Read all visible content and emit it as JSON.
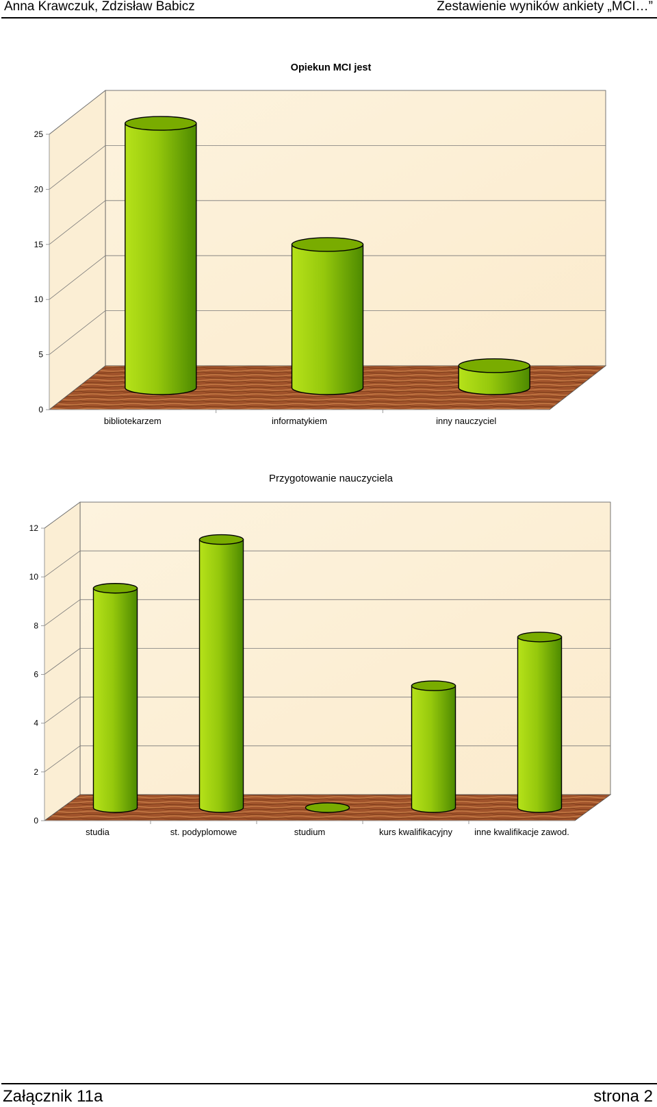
{
  "header": {
    "left": "Anna Krawczuk, Zdzisław Babicz",
    "right": "Zestawienie wyników ankiety „MCI…”"
  },
  "footer": {
    "left": "Załącznik 11a",
    "right": "strona 2"
  },
  "colors": {
    "bar_light": "#b6e21a",
    "bar_dark": "#4d8a00",
    "bar_top": "#79ac00",
    "wall": "#fbebcd",
    "floor": "#a0532b"
  },
  "chart_data": [
    {
      "type": "bar",
      "style": "3d-cylinder",
      "title": "Opiekun MCI jest",
      "categories": [
        "bibliotekarzem",
        "informatykiem",
        "inny nauczyciel"
      ],
      "values": [
        24,
        13,
        2
      ],
      "ylim": [
        0,
        25
      ],
      "yticks": [
        0,
        5,
        10,
        15,
        20,
        25
      ],
      "grid": true,
      "legend": "none"
    },
    {
      "type": "bar",
      "style": "3d-cylinder",
      "title": "Przygotowanie nauczyciela",
      "categories": [
        "studia",
        "st. podyplomowe",
        "studium",
        "kurs kwalifikacyjny",
        "inne kwalifikacje zawod."
      ],
      "values": [
        9,
        11,
        0,
        5,
        7
      ],
      "ylim": [
        0,
        12
      ],
      "yticks": [
        0,
        2,
        4,
        6,
        8,
        10,
        12
      ],
      "grid": true,
      "legend": "none"
    }
  ]
}
